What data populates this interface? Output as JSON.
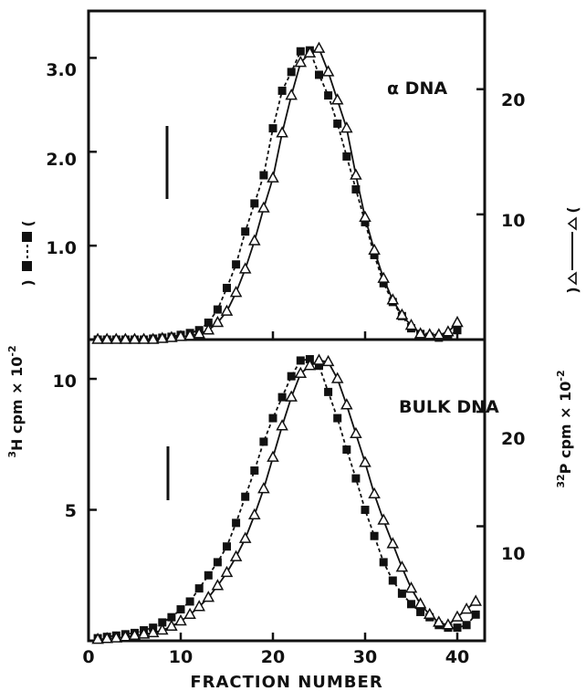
{
  "chart_data": [
    {
      "type": "line",
      "panel_label": "α DNA",
      "xlabel": "FRACTION NUMBER",
      "xlim": [
        0,
        43
      ],
      "ylim_left": [
        0,
        3.5
      ],
      "ylim_right": [
        0,
        26.25
      ],
      "left_ticks": [
        "1.0",
        "2.0",
        "3.0"
      ],
      "right_ticks": [
        "10",
        "20"
      ],
      "marker_line_x": 8,
      "series": [
        {
          "style": "dashed",
          "marker": "filled-square",
          "axis": "left",
          "x": [
            1,
            2,
            3,
            4,
            5,
            6,
            7,
            8,
            9,
            10,
            11,
            12,
            13,
            14,
            15,
            16,
            17,
            18,
            19,
            20,
            21,
            22,
            23,
            24,
            25,
            26,
            27,
            28,
            29,
            30,
            31,
            32,
            33,
            34,
            35,
            36,
            37,
            38,
            39,
            40
          ],
          "y": [
            0,
            0,
            0,
            0,
            0,
            0,
            0.01,
            0.02,
            0.03,
            0.05,
            0.07,
            0.1,
            0.18,
            0.32,
            0.55,
            0.8,
            1.15,
            1.45,
            1.75,
            2.25,
            2.65,
            2.85,
            3.07,
            3.08,
            2.82,
            2.6,
            2.3,
            1.95,
            1.6,
            1.25,
            0.9,
            0.6,
            0.4,
            0.25,
            0.12,
            0.06,
            0.03,
            0.02,
            0.03,
            0.1
          ]
        },
        {
          "style": "solid",
          "marker": "open-triangle",
          "axis": "left",
          "x": [
            1,
            2,
            3,
            4,
            5,
            6,
            7,
            8,
            9,
            10,
            11,
            12,
            13,
            14,
            15,
            16,
            17,
            18,
            19,
            20,
            21,
            22,
            23,
            24,
            25,
            26,
            27,
            28,
            29,
            30,
            31,
            32,
            33,
            34,
            35,
            36,
            37,
            38,
            39,
            40
          ],
          "y": [
            0,
            0,
            0,
            0,
            0,
            0,
            0,
            0.01,
            0.02,
            0.03,
            0.04,
            0.06,
            0.1,
            0.18,
            0.3,
            0.5,
            0.75,
            1.05,
            1.4,
            1.72,
            2.2,
            2.6,
            2.95,
            3.05,
            3.1,
            2.85,
            2.55,
            2.25,
            1.75,
            1.3,
            0.95,
            0.65,
            0.42,
            0.26,
            0.15,
            0.06,
            0.05,
            0.05,
            0.08,
            0.18
          ]
        }
      ]
    },
    {
      "type": "line",
      "panel_label": "BULK DNA",
      "xlabel": "FRACTION NUMBER",
      "xlim": [
        0,
        43
      ],
      "ylim_left": [
        0,
        11.5
      ],
      "ylim_right": [
        0,
        26.3
      ],
      "left_ticks": [
        "5",
        "10"
      ],
      "right_ticks": [
        "10",
        "20"
      ],
      "x_ticks": [
        "0",
        "10",
        "20",
        "30",
        "40"
      ],
      "marker_line_x": 8,
      "series": [
        {
          "style": "dashed",
          "marker": "filled-square",
          "axis": "left",
          "x": [
            1,
            2,
            3,
            4,
            5,
            6,
            7,
            8,
            9,
            10,
            11,
            12,
            13,
            14,
            15,
            16,
            17,
            18,
            19,
            20,
            21,
            22,
            23,
            24,
            25,
            26,
            27,
            28,
            29,
            30,
            31,
            32,
            33,
            34,
            35,
            36,
            37,
            38,
            39,
            40,
            41,
            42
          ],
          "y": [
            0.1,
            0.15,
            0.2,
            0.25,
            0.3,
            0.4,
            0.5,
            0.7,
            0.9,
            1.2,
            1.5,
            2.0,
            2.5,
            3.0,
            3.6,
            4.5,
            5.5,
            6.5,
            7.6,
            8.5,
            9.3,
            10.1,
            10.7,
            10.75,
            10.5,
            9.5,
            8.5,
            7.3,
            6.2,
            5.0,
            4.0,
            3.0,
            2.3,
            1.8,
            1.4,
            1.1,
            0.9,
            0.6,
            0.5,
            0.5,
            0.6,
            1.0
          ]
        },
        {
          "style": "solid",
          "marker": "open-triangle",
          "axis": "left",
          "x": [
            1,
            2,
            3,
            4,
            5,
            6,
            7,
            8,
            9,
            10,
            11,
            12,
            13,
            14,
            15,
            16,
            17,
            18,
            19,
            20,
            21,
            22,
            23,
            24,
            25,
            26,
            27,
            28,
            29,
            30,
            31,
            32,
            33,
            34,
            35,
            36,
            37,
            38,
            39,
            40,
            41,
            42
          ],
          "y": [
            0.05,
            0.08,
            0.1,
            0.15,
            0.2,
            0.25,
            0.3,
            0.4,
            0.55,
            0.75,
            1.0,
            1.3,
            1.65,
            2.1,
            2.6,
            3.2,
            3.9,
            4.8,
            5.8,
            7.0,
            8.2,
            9.3,
            10.2,
            10.5,
            10.7,
            10.65,
            10.0,
            9.0,
            7.9,
            6.8,
            5.6,
            4.6,
            3.7,
            2.8,
            2.0,
            1.4,
            1.0,
            0.7,
            0.6,
            0.9,
            1.2,
            1.5
          ]
        }
      ]
    }
  ],
  "labels": {
    "panel1": "α DNA",
    "panel2": "BULK DNA",
    "xlabel": "FRACTION NUMBER",
    "x_ticks": [
      "0",
      "10",
      "20",
      "30",
      "40"
    ],
    "left_ticks_top": [
      "1.0",
      "2.0",
      "3.0"
    ],
    "left_ticks_bottom": [
      "5",
      "10"
    ],
    "right_ticks": [
      "10",
      "20"
    ],
    "ylabel_left_sup": "3",
    "ylabel_left_main": "H cpm × 10",
    "ylabel_left_exp": "-2",
    "ylabel_right_sup": "32",
    "ylabel_right_main": "P cpm × 10",
    "ylabel_right_exp": "-2"
  }
}
